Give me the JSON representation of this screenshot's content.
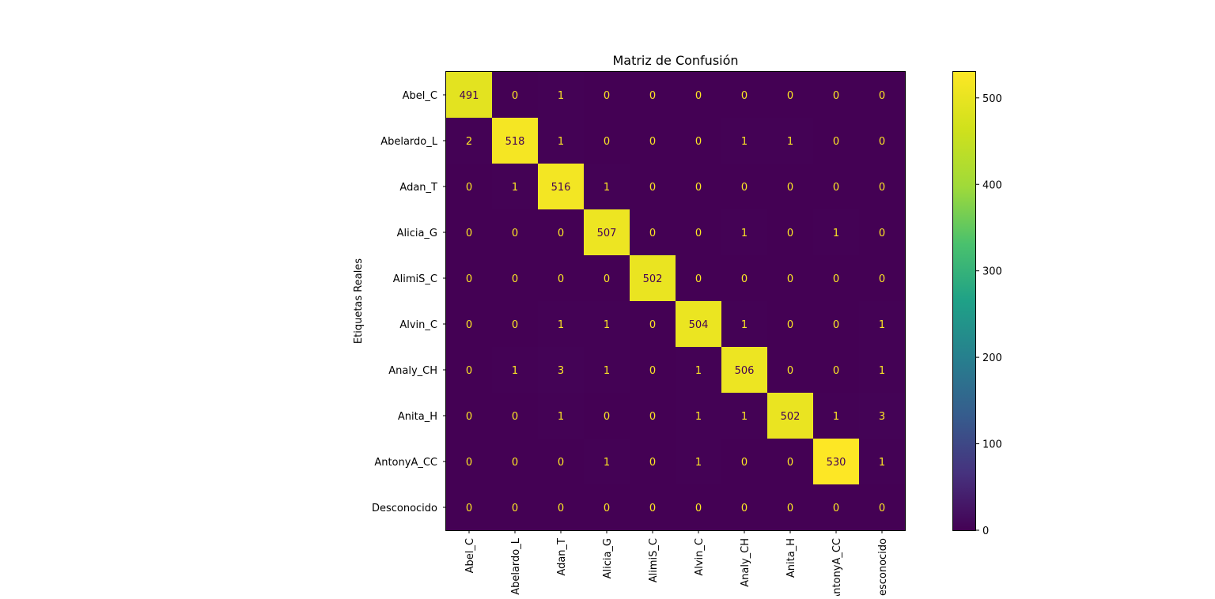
{
  "chart_data": {
    "type": "heatmap",
    "title": "Matriz de Confusión",
    "ylabel": "Etiquetas Reales",
    "xlabel": "",
    "x_categories": [
      "Abel_C",
      "Abelardo_L",
      "Adan_T",
      "Alicia_G",
      "AlimiS_C",
      "Alvin_C",
      "Analy_CH",
      "Anita_H",
      "AntonyA_CC",
      "Desconocido"
    ],
    "y_categories": [
      "Abel_C",
      "Abelardo_L",
      "Adan_T",
      "Alicia_G",
      "AlimiS_C",
      "Alvin_C",
      "Analy_CH",
      "Anita_H",
      "AntonyA_CC",
      "Desconocido"
    ],
    "matrix": [
      [
        491,
        0,
        1,
        0,
        0,
        0,
        0,
        0,
        0,
        0
      ],
      [
        2,
        518,
        1,
        0,
        0,
        0,
        1,
        1,
        0,
        0
      ],
      [
        0,
        1,
        516,
        1,
        0,
        0,
        0,
        0,
        0,
        0
      ],
      [
        0,
        0,
        0,
        507,
        0,
        0,
        1,
        0,
        1,
        0
      ],
      [
        0,
        0,
        0,
        0,
        502,
        0,
        0,
        0,
        0,
        0
      ],
      [
        0,
        0,
        1,
        1,
        0,
        504,
        1,
        0,
        0,
        1
      ],
      [
        0,
        1,
        3,
        1,
        0,
        1,
        506,
        0,
        0,
        1
      ],
      [
        0,
        0,
        1,
        0,
        0,
        1,
        1,
        502,
        1,
        3
      ],
      [
        0,
        0,
        0,
        1,
        0,
        1,
        0,
        0,
        530,
        1
      ],
      [
        0,
        0,
        0,
        0,
        0,
        0,
        0,
        0,
        0,
        0
      ]
    ],
    "colormap": "viridis",
    "colorbar": {
      "vmin": 0,
      "vmax": 530,
      "ticks": [
        0,
        100,
        200,
        300,
        400,
        500
      ]
    },
    "colors": {
      "low_text": "#fde725",
      "high_text": "#440154"
    }
  }
}
